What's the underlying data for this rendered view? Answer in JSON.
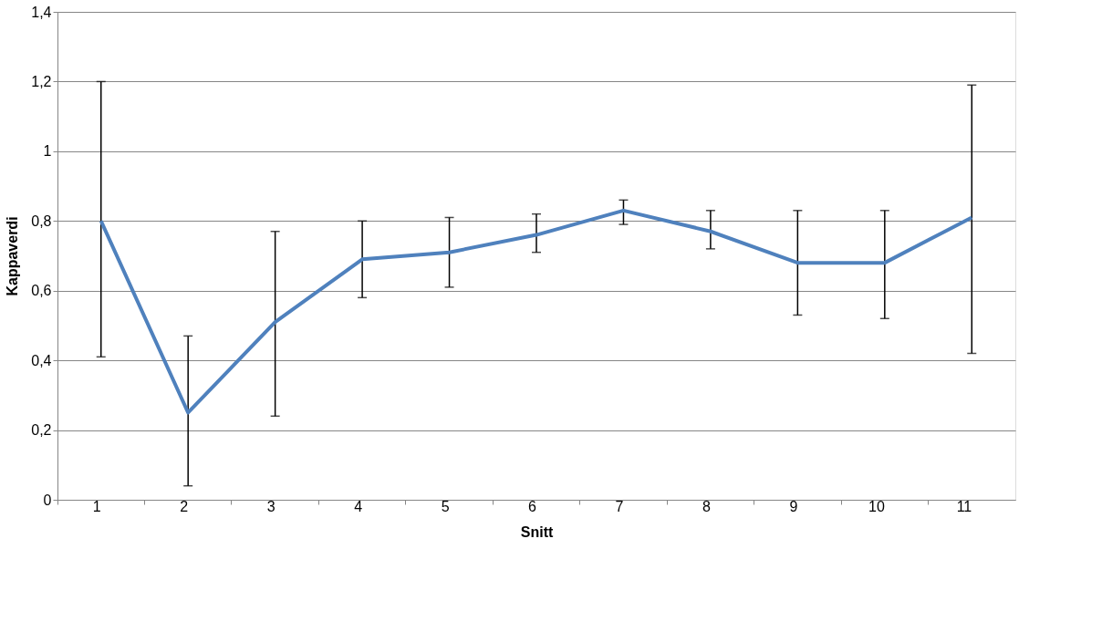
{
  "chart_data": {
    "type": "line",
    "xlabel": "Snitt",
    "ylabel": "Kappaverdi",
    "categories": [
      "1",
      "2",
      "3",
      "4",
      "5",
      "6",
      "7",
      "8",
      "9",
      "10",
      "11"
    ],
    "series": [
      {
        "color": "#4f81bd",
        "values": [
          0.8,
          0.25,
          0.51,
          0.69,
          0.71,
          0.76,
          0.83,
          0.77,
          0.68,
          0.68,
          0.81
        ],
        "errors": [
          [
            0.41,
            1.2
          ],
          [
            0.04,
            0.47
          ],
          [
            0.24,
            0.77
          ],
          [
            0.58,
            0.8
          ],
          [
            0.61,
            0.81
          ],
          [
            0.71,
            0.82
          ],
          [
            0.79,
            0.86
          ],
          [
            0.72,
            0.83
          ],
          [
            0.53,
            0.83
          ],
          [
            0.52,
            0.83
          ],
          [
            0.42,
            1.19
          ]
        ]
      }
    ],
    "ylim": [
      0,
      1.4
    ],
    "yticks": [
      0,
      {
        "value": 0.2,
        "label": "0,2"
      },
      {
        "value": 0.4,
        "label": "0,4"
      },
      {
        "value": 0.6,
        "label": "0,6"
      },
      {
        "value": 0.8,
        "label": "0,8"
      },
      1,
      {
        "value": 1.2,
        "label": "1,2"
      },
      {
        "value": 1.4,
        "label": "1,4"
      }
    ],
    "grid": "y",
    "marker": "none",
    "line_style": "solid"
  }
}
